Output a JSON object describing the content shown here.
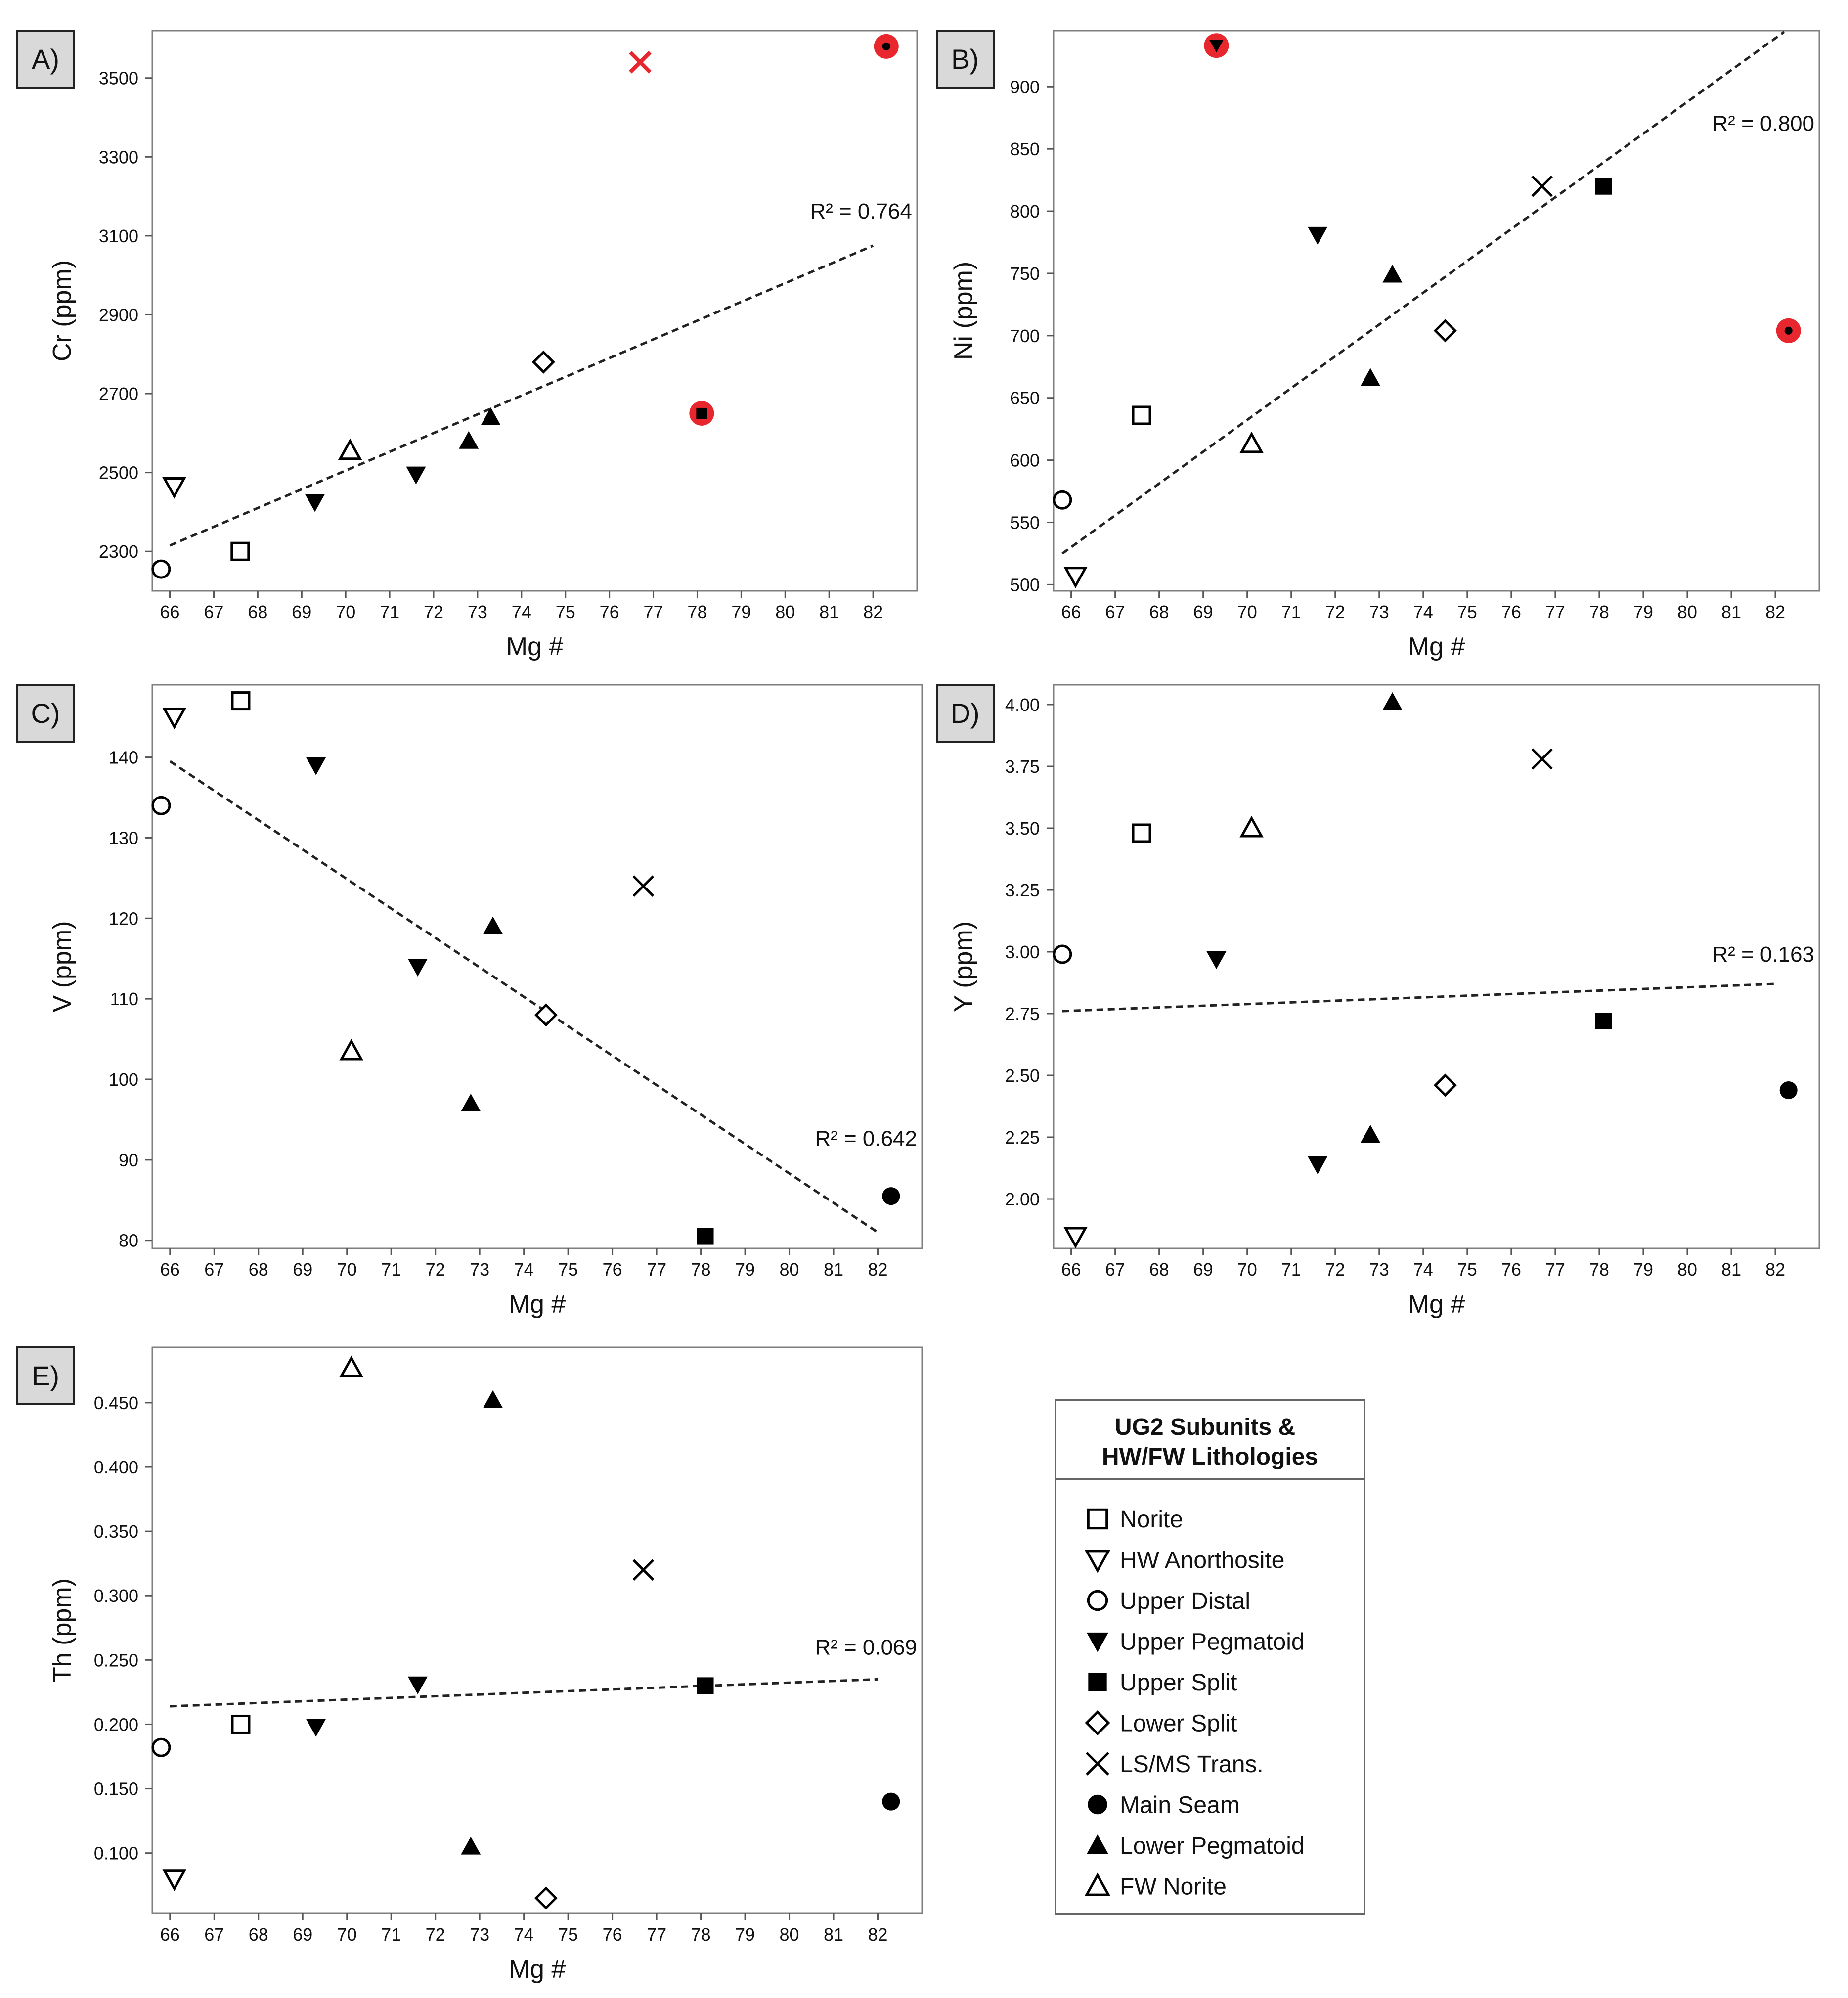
{
  "chart_data": [
    {
      "type": "scatter",
      "panel": "A)",
      "xlabel": "Mg #",
      "ylabel": "Cr (ppm)",
      "xlim": [
        65.6,
        83.0
      ],
      "ylim": [
        2200,
        3620
      ],
      "xticks": [
        66,
        67,
        68,
        69,
        70,
        71,
        72,
        73,
        74,
        75,
        76,
        77,
        78,
        79,
        80,
        81,
        82
      ],
      "yticks": [
        2300,
        2500,
        2700,
        2900,
        3100,
        3300,
        3500
      ],
      "r2": "R² = 0.764",
      "trend": [
        [
          66.0,
          2315
        ],
        [
          82.0,
          3075
        ]
      ],
      "points": [
        {
          "series": "HW Anorthosite",
          "x": 66.1,
          "y": 2465,
          "highlight": false
        },
        {
          "series": "Upper Distal",
          "x": 65.8,
          "y": 2255,
          "highlight": false
        },
        {
          "series": "Norite",
          "x": 67.6,
          "y": 2300,
          "highlight": false
        },
        {
          "series": "Upper Pegmatoid",
          "x": 69.3,
          "y": 2425,
          "highlight": false
        },
        {
          "series": "FW Norite",
          "x": 70.1,
          "y": 2555,
          "highlight": false
        },
        {
          "series": "Upper Pegmatoid",
          "x": 71.6,
          "y": 2495,
          "highlight": false
        },
        {
          "series": "Lower Pegmatoid",
          "x": 72.8,
          "y": 2580,
          "highlight": false
        },
        {
          "series": "Lower Pegmatoid",
          "x": 73.3,
          "y": 2640,
          "highlight": false
        },
        {
          "series": "Lower Split",
          "x": 74.5,
          "y": 2780,
          "highlight": false
        },
        {
          "series": "LS/MS Trans.",
          "x": 76.7,
          "y": 3540,
          "highlight": true
        },
        {
          "series": "Upper Split",
          "x": 78.1,
          "y": 2650,
          "highlight": true
        },
        {
          "series": "Main Seam",
          "x": 82.3,
          "y": 3580,
          "highlight": true
        }
      ]
    },
    {
      "type": "scatter",
      "panel": "B)",
      "xlabel": "Mg #",
      "ylabel": "Ni (ppm)",
      "xlim": [
        65.6,
        83.0
      ],
      "ylim": [
        495,
        945
      ],
      "xticks": [
        66,
        67,
        68,
        69,
        70,
        71,
        72,
        73,
        74,
        75,
        76,
        77,
        78,
        79,
        80,
        81,
        82
      ],
      "yticks": [
        500,
        550,
        600,
        650,
        700,
        750,
        800,
        850,
        900
      ],
      "r2": "R² = 0.800",
      "trend": [
        [
          65.8,
          525
        ],
        [
          82.2,
          944
        ]
      ],
      "points": [
        {
          "series": "Upper Distal",
          "x": 65.8,
          "y": 568,
          "highlight": false
        },
        {
          "series": "HW Anorthosite",
          "x": 66.1,
          "y": 507,
          "highlight": false
        },
        {
          "series": "Norite",
          "x": 67.6,
          "y": 636,
          "highlight": false
        },
        {
          "series": "Upper Pegmatoid",
          "x": 69.3,
          "y": 933,
          "highlight": true
        },
        {
          "series": "FW Norite",
          "x": 70.1,
          "y": 613,
          "highlight": false
        },
        {
          "series": "Upper Pegmatoid",
          "x": 71.6,
          "y": 781,
          "highlight": false
        },
        {
          "series": "Lower Pegmatoid",
          "x": 72.8,
          "y": 666,
          "highlight": false
        },
        {
          "series": "Lower Pegmatoid",
          "x": 73.3,
          "y": 749,
          "highlight": false
        },
        {
          "series": "Lower Split",
          "x": 74.5,
          "y": 704,
          "highlight": false
        },
        {
          "series": "LS/MS Trans.",
          "x": 76.7,
          "y": 820,
          "highlight": false
        },
        {
          "series": "Upper Split",
          "x": 78.1,
          "y": 820,
          "highlight": false
        },
        {
          "series": "Main Seam",
          "x": 82.3,
          "y": 704,
          "highlight": true
        }
      ]
    },
    {
      "type": "scatter",
      "panel": "C)",
      "xlabel": "Mg #",
      "ylabel": "V (ppm)",
      "xlim": [
        65.6,
        83.0
      ],
      "ylim": [
        79,
        149
      ],
      "xticks": [
        66,
        67,
        68,
        69,
        70,
        71,
        72,
        73,
        74,
        75,
        76,
        77,
        78,
        79,
        80,
        81,
        82
      ],
      "yticks": [
        80,
        90,
        100,
        110,
        120,
        130,
        140
      ],
      "r2": "R² = 0.642",
      "trend": [
        [
          66.0,
          139.5
        ],
        [
          82.0,
          81.0
        ]
      ],
      "points": [
        {
          "series": "Upper Distal",
          "x": 65.8,
          "y": 134,
          "highlight": false
        },
        {
          "series": "HW Anorthosite",
          "x": 66.1,
          "y": 145,
          "highlight": false
        },
        {
          "series": "Norite",
          "x": 67.6,
          "y": 147,
          "highlight": false
        },
        {
          "series": "Upper Pegmatoid",
          "x": 69.3,
          "y": 139,
          "highlight": false
        },
        {
          "series": "FW Norite",
          "x": 70.1,
          "y": 103.5,
          "highlight": false
        },
        {
          "series": "Upper Pegmatoid",
          "x": 71.6,
          "y": 114,
          "highlight": false
        },
        {
          "series": "Lower Pegmatoid",
          "x": 72.8,
          "y": 97,
          "highlight": false
        },
        {
          "series": "Lower Pegmatoid",
          "x": 73.3,
          "y": 119,
          "highlight": false
        },
        {
          "series": "Lower Split",
          "x": 74.5,
          "y": 108,
          "highlight": false
        },
        {
          "series": "LS/MS Trans.",
          "x": 76.7,
          "y": 124,
          "highlight": false
        },
        {
          "series": "Upper Split",
          "x": 78.1,
          "y": 80.5,
          "highlight": false
        },
        {
          "series": "Main Seam",
          "x": 82.3,
          "y": 85.5,
          "highlight": false
        }
      ]
    },
    {
      "type": "scatter",
      "panel": "D)",
      "xlabel": "Mg #",
      "ylabel": "Y (ppm)",
      "xlim": [
        65.6,
        83.0
      ],
      "ylim": [
        1.8,
        4.08
      ],
      "xticks": [
        66,
        67,
        68,
        69,
        70,
        71,
        72,
        73,
        74,
        75,
        76,
        77,
        78,
        79,
        80,
        81,
        82
      ],
      "yticks": [
        "2.00",
        "2.25",
        "2.50",
        "2.75",
        "3.00",
        "3.25",
        "3.50",
        "3.75",
        "4.00"
      ],
      "r2": "R² = 0.163",
      "trend": [
        [
          65.8,
          2.76
        ],
        [
          82.0,
          2.87
        ]
      ],
      "points": [
        {
          "series": "Upper Distal",
          "x": 65.8,
          "y": 2.99,
          "highlight": false
        },
        {
          "series": "HW Anorthosite",
          "x": 66.1,
          "y": 1.85,
          "highlight": false
        },
        {
          "series": "Norite",
          "x": 67.6,
          "y": 3.48,
          "highlight": false
        },
        {
          "series": "Upper Pegmatoid",
          "x": 69.3,
          "y": 2.97,
          "highlight": false
        },
        {
          "series": "FW Norite",
          "x": 70.1,
          "y": 3.5,
          "highlight": false
        },
        {
          "series": "Upper Pegmatoid",
          "x": 71.6,
          "y": 2.14,
          "highlight": false
        },
        {
          "series": "Lower Pegmatoid",
          "x": 72.8,
          "y": 2.26,
          "highlight": false
        },
        {
          "series": "Lower Pegmatoid",
          "x": 73.3,
          "y": 4.01,
          "highlight": false
        },
        {
          "series": "Lower Split",
          "x": 74.5,
          "y": 2.46,
          "highlight": false
        },
        {
          "series": "LS/MS Trans.",
          "x": 76.7,
          "y": 3.78,
          "highlight": false
        },
        {
          "series": "Upper Split",
          "x": 78.1,
          "y": 2.72,
          "highlight": false
        },
        {
          "series": "Main Seam",
          "x": 82.3,
          "y": 2.44,
          "highlight": false
        }
      ]
    },
    {
      "type": "scatter",
      "panel": "E)",
      "xlabel": "Mg #",
      "ylabel": "Th (ppm)",
      "xlim": [
        65.6,
        83.0
      ],
      "ylim": [
        0.053,
        0.493
      ],
      "xticks": [
        66,
        67,
        68,
        69,
        70,
        71,
        72,
        73,
        74,
        75,
        76,
        77,
        78,
        79,
        80,
        81,
        82
      ],
      "yticks": [
        "0.100",
        "0.150",
        "0.200",
        "0.250",
        "0.300",
        "0.350",
        "0.400",
        "0.450"
      ],
      "r2": "R² = 0.069",
      "trend": [
        [
          66.0,
          0.214
        ],
        [
          82.0,
          0.235
        ]
      ],
      "points": [
        {
          "series": "Upper Distal",
          "x": 65.8,
          "y": 0.182,
          "highlight": false
        },
        {
          "series": "HW Anorthosite",
          "x": 66.1,
          "y": 0.08,
          "highlight": false
        },
        {
          "series": "Norite",
          "x": 67.6,
          "y": 0.2,
          "highlight": false
        },
        {
          "series": "Upper Pegmatoid",
          "x": 69.3,
          "y": 0.198,
          "highlight": false
        },
        {
          "series": "FW Norite",
          "x": 70.1,
          "y": 0.477,
          "highlight": false
        },
        {
          "series": "Upper Pegmatoid",
          "x": 71.6,
          "y": 0.231,
          "highlight": false
        },
        {
          "series": "Lower Pegmatoid",
          "x": 72.8,
          "y": 0.105,
          "highlight": false
        },
        {
          "series": "Lower Pegmatoid",
          "x": 73.3,
          "y": 0.452,
          "highlight": false
        },
        {
          "series": "Lower Split",
          "x": 74.5,
          "y": 0.065,
          "highlight": false
        },
        {
          "series": "LS/MS Trans.",
          "x": 76.7,
          "y": 0.32,
          "highlight": false
        },
        {
          "series": "Upper Split",
          "x": 78.1,
          "y": 0.23,
          "highlight": false
        },
        {
          "series": "Main Seam",
          "x": 82.3,
          "y": 0.14,
          "highlight": false
        }
      ]
    }
  ],
  "legend": {
    "title_line1": "UG2 Subunits &",
    "title_line2": "HW/FW Lithologies",
    "entries": [
      {
        "label": "Norite",
        "marker": "square-open"
      },
      {
        "label": "HW Anorthosite",
        "marker": "triangle-down-open"
      },
      {
        "label": "Upper Distal",
        "marker": "circle-open"
      },
      {
        "label": "Upper Pegmatoid",
        "marker": "triangle-down-filled"
      },
      {
        "label": "Upper Split",
        "marker": "square-filled"
      },
      {
        "label": "Lower Split",
        "marker": "diamond-open"
      },
      {
        "label": "LS/MS Trans.",
        "marker": "cross"
      },
      {
        "label": "Main Seam",
        "marker": "circle-filled"
      },
      {
        "label": "Lower Pegmatoid",
        "marker": "triangle-up-filled"
      },
      {
        "label": "FW Norite",
        "marker": "triangle-up-open"
      }
    ]
  },
  "colors": {
    "marker": "#000000",
    "highlight": "#e8262d",
    "trend": "#222222",
    "tag_fill": "#d9d9d9"
  }
}
